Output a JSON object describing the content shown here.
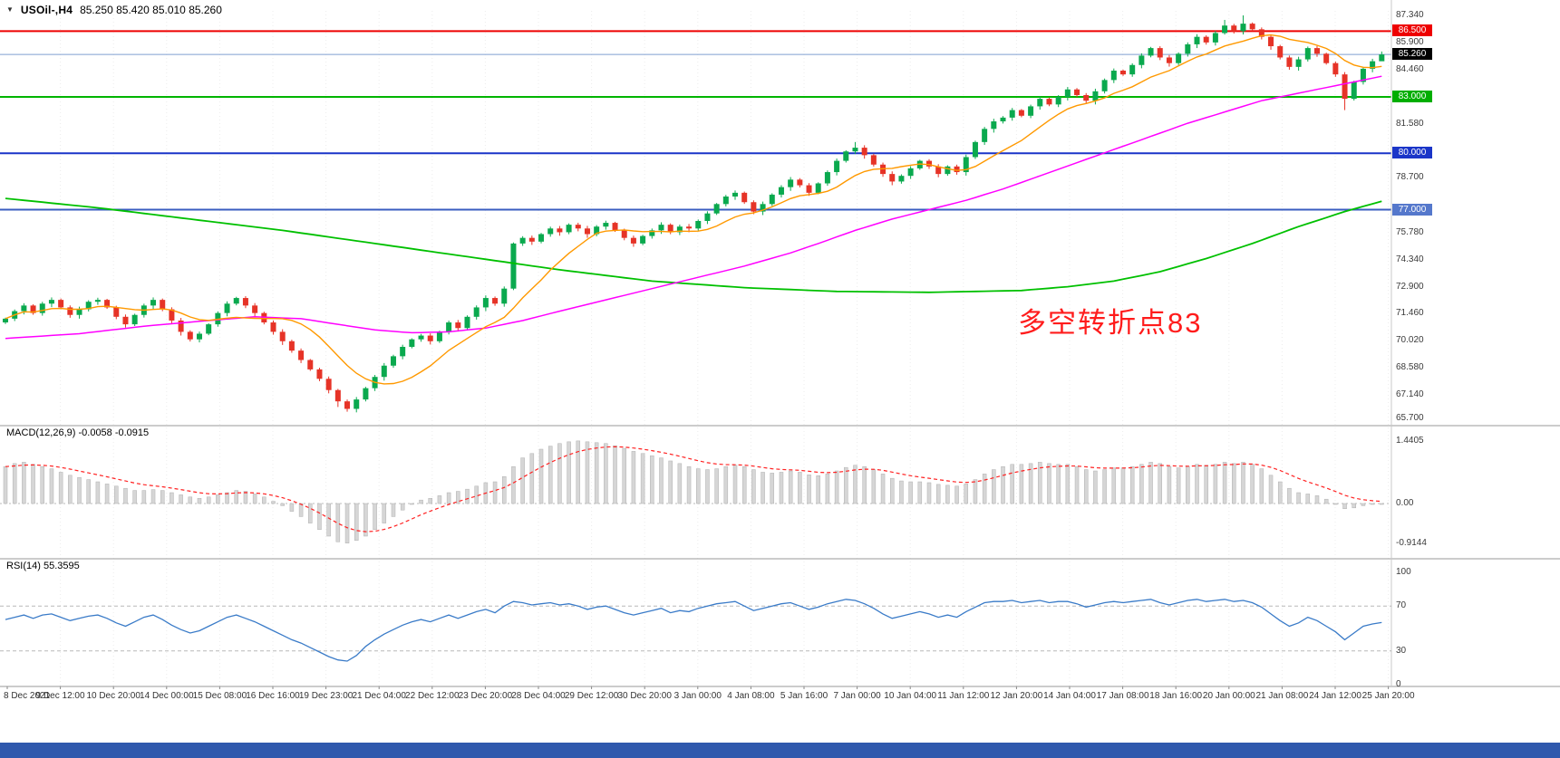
{
  "header": {
    "dropdown_icon": "▼",
    "symbol_period": "USOil-,H4",
    "ohlc_values": "85.250 85.420 85.010 85.260"
  },
  "annotation": {
    "text": "多空转折点83",
    "color": "#ff1c1c"
  },
  "indicators": {
    "macd": {
      "name": "MACD(12,26,9)",
      "values_text": "-0.0058 -0.0915",
      "axis": [
        {
          "label": "1.4405",
          "v": 1.4405
        },
        {
          "label": "0.00",
          "v": 0
        },
        {
          "label": "-0.9144",
          "v": -0.9144
        }
      ]
    },
    "rsi": {
      "name": "RSI(14)",
      "value_text": "55.3595",
      "axis": [
        {
          "label": "100",
          "v": 100
        },
        {
          "label": "70",
          "v": 70
        },
        {
          "label": "30",
          "v": 30
        },
        {
          "label": "0",
          "v": 0
        }
      ]
    }
  },
  "price_axis": {
    "ticks": [
      87.34,
      85.9,
      84.46,
      81.58,
      78.7,
      75.78,
      74.34,
      72.9,
      71.46,
      70.02,
      68.58,
      67.14,
      65.7
    ],
    "badges": [
      {
        "value": "86.500",
        "price": 86.5,
        "bg": "#ee0000",
        "fg": "#ffffff"
      },
      {
        "value": "85.260",
        "price": 85.26,
        "bg": "#000000",
        "fg": "#ffffff"
      },
      {
        "value": "83.000",
        "price": 83.0,
        "bg": "#00ae00",
        "fg": "#ffffff"
      },
      {
        "value": "80.000",
        "price": 80.0,
        "bg": "#1a35c8",
        "fg": "#ffffff"
      },
      {
        "value": "77.000",
        "price": 77.0,
        "bg": "#5578cc",
        "fg": "#ffffff"
      }
    ]
  },
  "time_axis": {
    "labels": [
      "8 Dec 2021",
      "9 Dec 12:00",
      "10 Dec 20:00",
      "14 Dec 00:00",
      "15 Dec 08:00",
      "16 Dec 16:00",
      "19 Dec 23:00",
      "21 Dec 04:00",
      "22 Dec 12:00",
      "23 Dec 20:00",
      "28 Dec 04:00",
      "29 Dec 12:00",
      "30 Dec 20:00",
      "3 Jan 00:00",
      "4 Jan 08:00",
      "5 Jan 16:00",
      "7 Jan 00:00",
      "10 Jan 04:00",
      "11 Jan 12:00",
      "12 Jan 20:00",
      "14 Jan 04:00",
      "17 Jan 08:00",
      "18 Jan 16:00",
      "20 Jan 00:00",
      "21 Jan 08:00",
      "24 Jan 12:00",
      "25 Jan 20:00"
    ]
  },
  "chart_data": {
    "type": "candlestick",
    "symbol": "USOil-",
    "timeframe": "H4",
    "last_bar": {
      "open": 85.25,
      "high": 85.42,
      "low": 85.01,
      "close": 85.26
    },
    "y_range": [
      65.7,
      87.34
    ],
    "first_open": 71.0,
    "closes": [
      71.2,
      71.6,
      71.9,
      71.5,
      72.0,
      72.2,
      71.8,
      71.4,
      71.7,
      72.1,
      72.2,
      71.8,
      71.3,
      70.9,
      71.4,
      71.9,
      72.2,
      71.7,
      71.1,
      70.5,
      70.1,
      70.4,
      70.9,
      71.5,
      72.0,
      72.3,
      71.9,
      71.5,
      71.0,
      70.5,
      70.0,
      69.5,
      69.0,
      68.5,
      68.0,
      67.4,
      66.8,
      66.4,
      66.9,
      67.5,
      68.1,
      68.7,
      69.2,
      69.7,
      70.1,
      70.3,
      70.0,
      70.5,
      71.0,
      70.7,
      71.3,
      71.8,
      72.3,
      72.0,
      72.8,
      75.2,
      75.5,
      75.3,
      75.7,
      76.0,
      75.8,
      76.2,
      76.0,
      75.7,
      76.1,
      76.3,
      75.9,
      75.5,
      75.2,
      75.6,
      75.9,
      76.2,
      75.8,
      76.1,
      76.0,
      76.4,
      76.8,
      77.3,
      77.7,
      77.9,
      77.4,
      76.9,
      77.3,
      77.8,
      78.2,
      78.6,
      78.3,
      77.9,
      78.4,
      79.0,
      79.6,
      80.1,
      80.3,
      79.9,
      79.4,
      78.9,
      78.5,
      78.8,
      79.2,
      79.6,
      79.3,
      78.9,
      79.3,
      79.0,
      79.8,
      80.6,
      81.3,
      81.7,
      81.9,
      82.3,
      82.0,
      82.5,
      82.9,
      82.6,
      83.0,
      83.4,
      83.1,
      82.8,
      83.3,
      83.9,
      84.4,
      84.2,
      84.7,
      85.2,
      85.6,
      85.1,
      84.8,
      85.3,
      85.8,
      86.2,
      85.9,
      86.4,
      86.8,
      86.5,
      86.9,
      86.6,
      86.2,
      85.7,
      85.1,
      84.6,
      85.0,
      85.6,
      85.3,
      84.8,
      84.2,
      82.9,
      83.8,
      84.5,
      84.9,
      85.26
    ],
    "wick_overrides": {
      "36": {
        "low": 66.5
      },
      "37": {
        "low": 66.25
      },
      "92": {
        "high": 80.6
      },
      "132": {
        "high": 87.1
      },
      "134": {
        "high": 87.34
      },
      "145": {
        "low": 82.3
      },
      "149": {
        "high": 85.42,
        "low": 85.01
      }
    },
    "horizontal_lines": [
      {
        "price": 86.5,
        "color": "#ee0000",
        "width": 2
      },
      {
        "price": 83.0,
        "color": "#00b400",
        "width": 2
      },
      {
        "price": 80.0,
        "color": "#1a35c8",
        "width": 2
      },
      {
        "price": 77.0,
        "color": "#3a5cc0",
        "width": 2
      }
    ],
    "current_price": 85.26,
    "moving_averages": {
      "fast": {
        "color": "#ff9900",
        "period": 10
      },
      "mid": {
        "color": "#ff00ff",
        "points": [
          [
            0,
            70.15
          ],
          [
            8,
            70.4
          ],
          [
            15,
            70.8
          ],
          [
            22,
            71.1
          ],
          [
            27,
            71.3
          ],
          [
            32,
            71.2
          ],
          [
            36,
            70.9
          ],
          [
            40,
            70.6
          ],
          [
            44,
            70.45
          ],
          [
            48,
            70.5
          ],
          [
            52,
            70.7
          ],
          [
            56,
            71.1
          ],
          [
            60,
            71.6
          ],
          [
            65,
            72.2
          ],
          [
            70,
            72.8
          ],
          [
            75,
            73.4
          ],
          [
            80,
            74.0
          ],
          [
            85,
            74.7
          ],
          [
            88,
            75.2
          ],
          [
            92,
            75.9
          ],
          [
            96,
            76.5
          ],
          [
            100,
            77.0
          ],
          [
            104,
            77.5
          ],
          [
            108,
            78.1
          ],
          [
            112,
            78.8
          ],
          [
            116,
            79.5
          ],
          [
            120,
            80.2
          ],
          [
            124,
            80.9
          ],
          [
            128,
            81.6
          ],
          [
            132,
            82.2
          ],
          [
            136,
            82.8
          ],
          [
            140,
            83.2
          ],
          [
            144,
            83.6
          ],
          [
            149,
            84.1
          ]
        ]
      },
      "slow": {
        "color": "#00c000",
        "points": [
          [
            0,
            77.6
          ],
          [
            10,
            77.1
          ],
          [
            20,
            76.5
          ],
          [
            30,
            75.9
          ],
          [
            40,
            75.2
          ],
          [
            50,
            74.5
          ],
          [
            60,
            73.8
          ],
          [
            70,
            73.2
          ],
          [
            80,
            72.85
          ],
          [
            90,
            72.65
          ],
          [
            100,
            72.6
          ],
          [
            110,
            72.7
          ],
          [
            115,
            72.9
          ],
          [
            120,
            73.2
          ],
          [
            125,
            73.7
          ],
          [
            130,
            74.4
          ],
          [
            135,
            75.2
          ],
          [
            140,
            76.1
          ],
          [
            145,
            76.9
          ],
          [
            149,
            77.45
          ]
        ]
      }
    },
    "macd": {
      "range": [
        -0.9144,
        1.4405
      ],
      "last_values": {
        "macd": -0.0058,
        "signal": -0.0915
      },
      "histogram": [
        0.85,
        0.92,
        0.95,
        0.9,
        0.85,
        0.8,
        0.72,
        0.65,
        0.6,
        0.55,
        0.5,
        0.45,
        0.4,
        0.35,
        0.3,
        0.3,
        0.32,
        0.3,
        0.25,
        0.2,
        0.15,
        0.12,
        0.15,
        0.2,
        0.25,
        0.3,
        0.28,
        0.22,
        0.15,
        0.05,
        -0.05,
        -0.18,
        -0.3,
        -0.45,
        -0.6,
        -0.75,
        -0.88,
        -0.91,
        -0.85,
        -0.75,
        -0.6,
        -0.45,
        -0.3,
        -0.15,
        -0.02,
        0.08,
        0.12,
        0.18,
        0.25,
        0.28,
        0.33,
        0.4,
        0.48,
        0.5,
        0.62,
        0.85,
        1.05,
        1.15,
        1.25,
        1.32,
        1.38,
        1.42,
        1.44,
        1.42,
        1.4,
        1.38,
        1.33,
        1.27,
        1.2,
        1.15,
        1.1,
        1.05,
        0.98,
        0.92,
        0.85,
        0.8,
        0.78,
        0.8,
        0.85,
        0.88,
        0.85,
        0.78,
        0.72,
        0.7,
        0.72,
        0.75,
        0.72,
        0.66,
        0.64,
        0.68,
        0.75,
        0.83,
        0.88,
        0.85,
        0.78,
        0.68,
        0.58,
        0.52,
        0.5,
        0.5,
        0.48,
        0.44,
        0.42,
        0.4,
        0.45,
        0.55,
        0.68,
        0.78,
        0.85,
        0.9,
        0.9,
        0.92,
        0.95,
        0.92,
        0.9,
        0.9,
        0.85,
        0.78,
        0.75,
        0.78,
        0.82,
        0.82,
        0.85,
        0.9,
        0.95,
        0.92,
        0.85,
        0.82,
        0.85,
        0.9,
        0.88,
        0.9,
        0.95,
        0.92,
        0.95,
        0.9,
        0.8,
        0.65,
        0.5,
        0.35,
        0.25,
        0.22,
        0.18,
        0.1,
        0.0,
        -0.12,
        -0.1,
        -0.05,
        -0.02,
        -0.006
      ]
    },
    "rsi": {
      "range": [
        0,
        100
      ],
      "levels": [
        70,
        30
      ],
      "last": 55.3595,
      "values": [
        58,
        60,
        62,
        59,
        62,
        63,
        60,
        57,
        59,
        61,
        62,
        59,
        55,
        52,
        56,
        60,
        62,
        58,
        53,
        49,
        46,
        48,
        52,
        56,
        60,
        62,
        59,
        56,
        52,
        48,
        44,
        40,
        37,
        33,
        29,
        25,
        22,
        21,
        26,
        34,
        40,
        45,
        49,
        53,
        56,
        58,
        56,
        59,
        62,
        59,
        62,
        65,
        67,
        64,
        70,
        74,
        73,
        71,
        72,
        73,
        71,
        72,
        70,
        67,
        69,
        70,
        67,
        64,
        62,
        64,
        66,
        68,
        64,
        66,
        65,
        68,
        70,
        72,
        73,
        74,
        70,
        66,
        68,
        70,
        72,
        73,
        70,
        67,
        69,
        72,
        74,
        76,
        75,
        72,
        68,
        63,
        59,
        61,
        63,
        65,
        63,
        60,
        62,
        60,
        65,
        69,
        73,
        74,
        74,
        75,
        73,
        74,
        75,
        73,
        74,
        74,
        72,
        69,
        71,
        73,
        74,
        73,
        74,
        75,
        76,
        73,
        71,
        73,
        75,
        76,
        74,
        75,
        76,
        74,
        75,
        73,
        69,
        63,
        57,
        52,
        55,
        60,
        57,
        52,
        47,
        40,
        46,
        52,
        54,
        55.36
      ]
    }
  },
  "colors": {
    "candle_up": "#0aa94e",
    "candle_down": "#e63327",
    "current_price_line": "#7f9fd0",
    "macd_bar_fill": "#d6d6d6",
    "macd_bar_stroke": "#b0b0b0",
    "macd_signal": "#ff2222",
    "macd_zero": "#bbbbbb",
    "rsi_line": "#3a7bc8",
    "rsi_level": "#b8b8b8",
    "grid": "#ececec",
    "separator": "#9a9a9a",
    "axis_border": "#c8c8c8",
    "bottom_bar": "#2f59ad"
  }
}
